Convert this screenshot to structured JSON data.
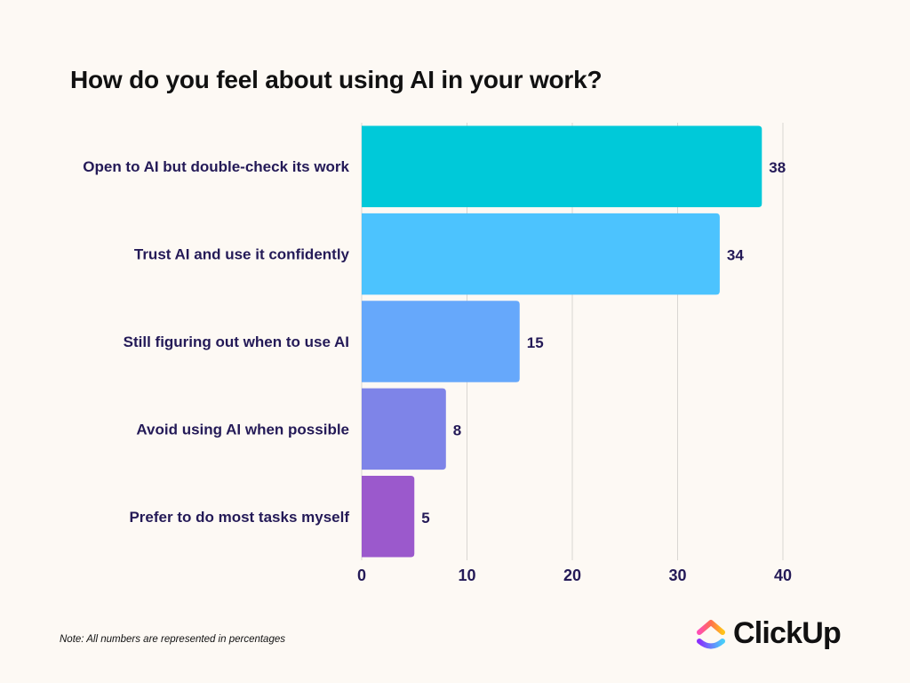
{
  "chart_data": {
    "type": "bar",
    "orientation": "horizontal",
    "title": "How do you feel about using AI in your work?",
    "categories": [
      "Open to AI but double-check its work",
      "Trust AI and use it confidently",
      "Still figuring out when to use AI",
      "Avoid using AI when possible",
      "Prefer to do most tasks myself"
    ],
    "values": [
      38,
      34,
      15,
      8,
      5
    ],
    "colors": [
      "#00c9d9",
      "#4cc3fe",
      "#66a8fb",
      "#7e84e8",
      "#9b59cc"
    ],
    "xticks": [
      "0",
      "10",
      "20",
      "30",
      "40"
    ],
    "xlim": [
      0,
      40
    ],
    "grid": true,
    "xlabel": "",
    "ylabel": ""
  },
  "note": "Note: All numbers are represented in percentages",
  "brand": {
    "name": "ClickUp",
    "logo_icon": "clickup-logo-icon"
  }
}
